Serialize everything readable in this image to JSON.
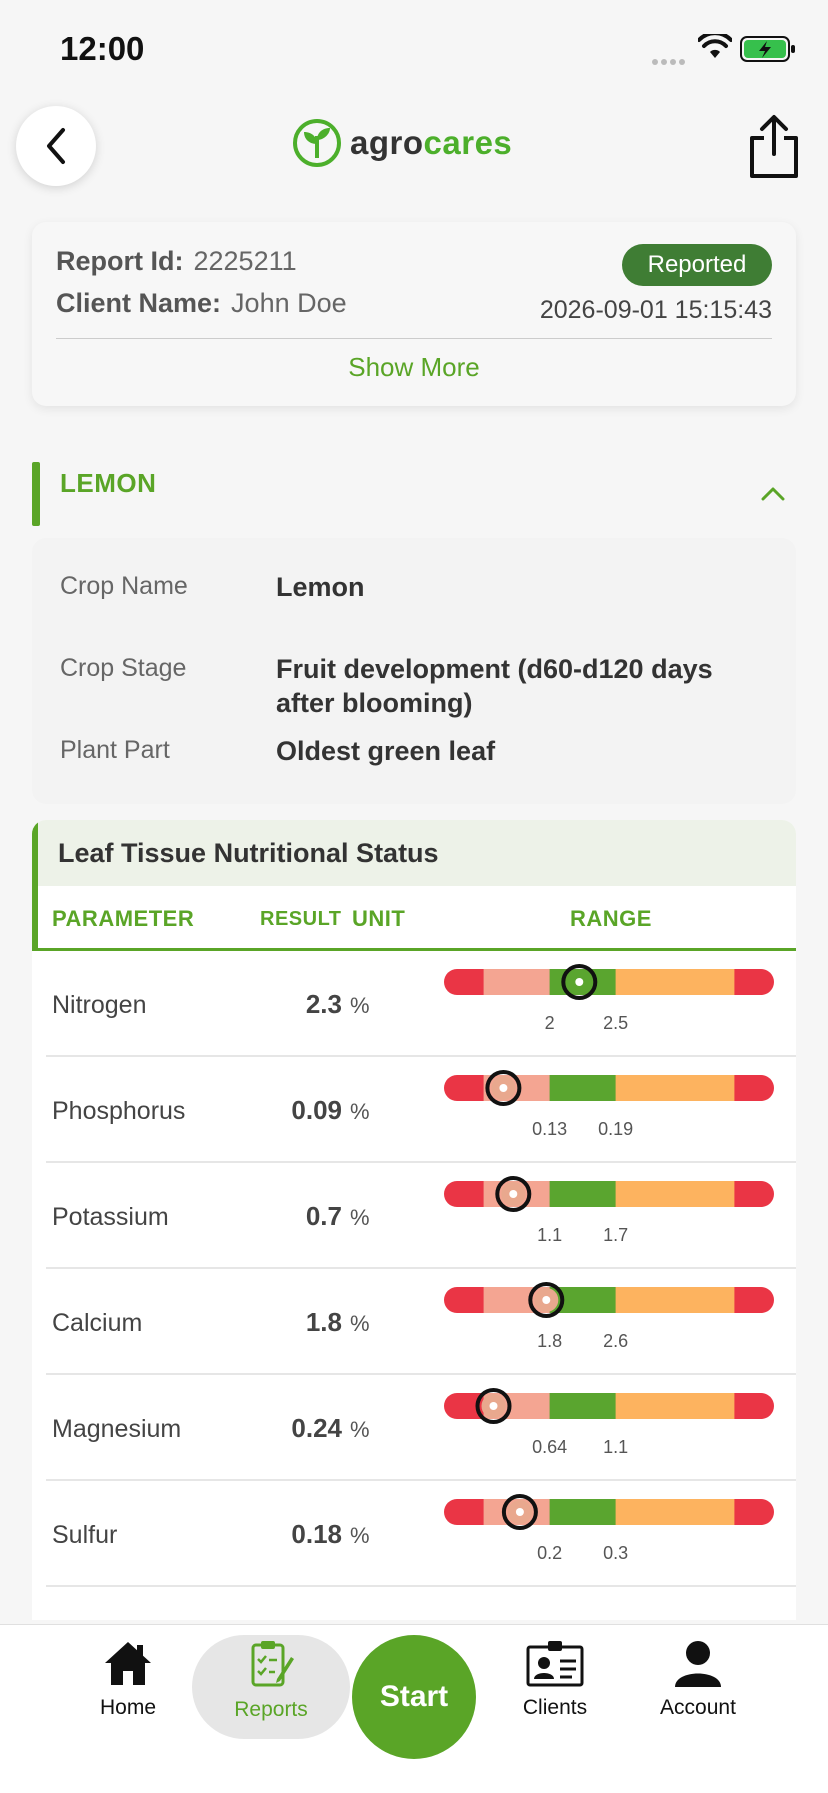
{
  "status_bar": {
    "time": "12:00"
  },
  "header": {
    "brand_prefix": "agro",
    "brand_suffix": "cares"
  },
  "report": {
    "id_label": "Report Id:",
    "id_value": "2225211",
    "client_label": "Client Name:",
    "client_value": "John Doe",
    "status": "Reported",
    "datetime": "2026-09-01 15:15:43",
    "show_more": "Show More"
  },
  "crop": {
    "section_title": "LEMON",
    "fields": [
      {
        "label": "Crop Name",
        "value": "Lemon"
      },
      {
        "label": "Crop Stage",
        "value": "Fruit development (d60-d120 days after blooming)"
      },
      {
        "label": "Plant Part",
        "value": "Oldest green leaf"
      }
    ]
  },
  "nutrition": {
    "title": "Leaf Tissue Nutritional Status",
    "columns": {
      "parameter": "PARAMETER",
      "result": "RESULT",
      "unit": "UNIT",
      "range": "RANGE"
    },
    "rows": [
      {
        "name": "Nitrogen",
        "result": "2.3",
        "unit": "%",
        "low": "2",
        "high": "2.5",
        "marker_fraction": 0.41
      },
      {
        "name": "Phosphorus",
        "result": "0.09",
        "unit": "%",
        "low": "0.13",
        "high": "0.19",
        "marker_fraction": 0.18
      },
      {
        "name": "Potassium",
        "result": "0.7",
        "unit": "%",
        "low": "1.1",
        "high": "1.7",
        "marker_fraction": 0.21
      },
      {
        "name": "Calcium",
        "result": "1.8",
        "unit": "%",
        "low": "1.8",
        "high": "2.6",
        "marker_fraction": 0.31
      },
      {
        "name": "Magnesium",
        "result": "0.24",
        "unit": "%",
        "low": "0.64",
        "high": "1.1",
        "marker_fraction": 0.15
      },
      {
        "name": "Sulfur",
        "result": "0.18",
        "unit": "%",
        "low": "0.2",
        "high": "0.3",
        "marker_fraction": 0.23
      }
    ],
    "colors": {
      "very_low": "#ea3545",
      "low": "#f4a592",
      "optimal": "#5aa52f",
      "high": "#fdb35f",
      "very_high": "#ea3545"
    }
  },
  "nav": {
    "items": [
      {
        "label": "Home"
      },
      {
        "label": "Reports"
      },
      {
        "label": "Start"
      },
      {
        "label": "Clients"
      },
      {
        "label": "Account"
      }
    ]
  }
}
